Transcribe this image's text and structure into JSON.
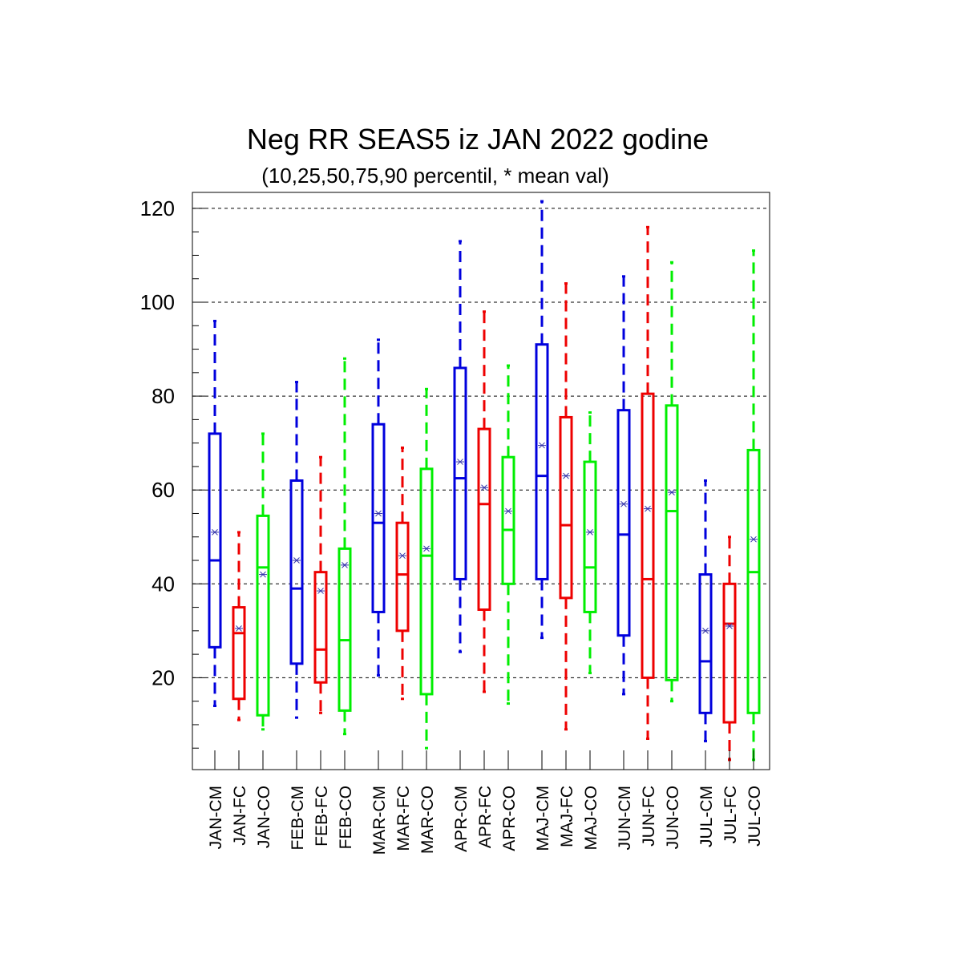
{
  "chart_data": {
    "type": "boxplot",
    "title": "Neg RR SEAS5 iz JAN 2022 godine",
    "subtitle": "(10,25,50,75,90 percentil, * mean val)",
    "xlabel": "",
    "ylabel": "",
    "ylim": [
      0,
      123
    ],
    "yticks": [
      20,
      40,
      60,
      80,
      100,
      120
    ],
    "grid": "horizontal-dashed",
    "colors": {
      "CM": "#0000dd",
      "FC": "#ee0000",
      "CO": "#00ee00",
      "mean_marker": "#3333aa"
    },
    "groups": [
      "JAN",
      "FEB",
      "MAR",
      "APR",
      "MAJ",
      "JUN",
      "JUL"
    ],
    "categories": [
      "JAN-CM",
      "JAN-FC",
      "JAN-CO",
      "FEB-CM",
      "FEB-FC",
      "FEB-CO",
      "MAR-CM",
      "MAR-FC",
      "MAR-CO",
      "APR-CM",
      "APR-FC",
      "APR-CO",
      "MAJ-CM",
      "MAJ-FC",
      "MAJ-CO",
      "JUN-CM",
      "JUN-FC",
      "JUN-CO",
      "JUL-CM",
      "JUL-FC",
      "JUL-CO"
    ],
    "boxes": [
      {
        "p10": 14,
        "p25": 26.5,
        "p50": 45,
        "p75": 72,
        "p90": 96,
        "mean": 51
      },
      {
        "p10": 11,
        "p25": 15.5,
        "p50": 29.5,
        "p75": 35,
        "p90": 51,
        "mean": 30.5
      },
      {
        "p10": 9,
        "p25": 12,
        "p50": 43.5,
        "p75": 54.5,
        "p90": 72,
        "mean": 42
      },
      {
        "p10": 11.5,
        "p25": 23,
        "p50": 39,
        "p75": 62,
        "p90": 83,
        "mean": 45
      },
      {
        "p10": 12.5,
        "p25": 19,
        "p50": 26,
        "p75": 42.5,
        "p90": 67,
        "mean": 38.5
      },
      {
        "p10": 8,
        "p25": 13,
        "p50": 28,
        "p75": 47.5,
        "p90": 88,
        "mean": 44
      },
      {
        "p10": 20.5,
        "p25": 34,
        "p50": 53,
        "p75": 74,
        "p90": 92,
        "mean": 55
      },
      {
        "p10": 15.5,
        "p25": 30,
        "p50": 42,
        "p75": 53,
        "p90": 69,
        "mean": 46
      },
      {
        "p10": 5,
        "p25": 16.5,
        "p50": 46,
        "p75": 64.5,
        "p90": 81.5,
        "mean": 47.5
      },
      {
        "p10": 25.5,
        "p25": 41,
        "p50": 62.5,
        "p75": 86,
        "p90": 113,
        "mean": 66
      },
      {
        "p10": 17,
        "p25": 34.5,
        "p50": 57,
        "p75": 73,
        "p90": 98,
        "mean": 60.5
      },
      {
        "p10": 14.5,
        "p25": 40,
        "p50": 51.5,
        "p75": 67,
        "p90": 86.5,
        "mean": 55.5
      },
      {
        "p10": 28.5,
        "p25": 41,
        "p50": 63,
        "p75": 91,
        "p90": 121.5,
        "mean": 69.5
      },
      {
        "p10": 9,
        "p25": 37,
        "p50": 52.5,
        "p75": 75.5,
        "p90": 104,
        "mean": 63
      },
      {
        "p10": 21,
        "p25": 34,
        "p50": 43.5,
        "p75": 66,
        "p90": 76.5,
        "mean": 51
      },
      {
        "p10": 16.5,
        "p25": 29,
        "p50": 50.5,
        "p75": 77,
        "p90": 105.5,
        "mean": 57
      },
      {
        "p10": 7,
        "p25": 20,
        "p50": 41,
        "p75": 80.5,
        "p90": 116,
        "mean": 56
      },
      {
        "p10": 15,
        "p25": 19.5,
        "p50": 55.5,
        "p75": 78,
        "p90": 108.5,
        "mean": 59.5
      },
      {
        "p10": 6.5,
        "p25": 12.5,
        "p50": 23.5,
        "p75": 42,
        "p90": 62,
        "mean": 30
      },
      {
        "p10": 2.5,
        "p25": 10.5,
        "p50": 31.5,
        "p75": 40,
        "p90": 50,
        "mean": 31
      },
      {
        "p10": 2.5,
        "p25": 12.5,
        "p50": 42.5,
        "p75": 68.5,
        "p90": 111,
        "mean": 49.5
      }
    ]
  }
}
